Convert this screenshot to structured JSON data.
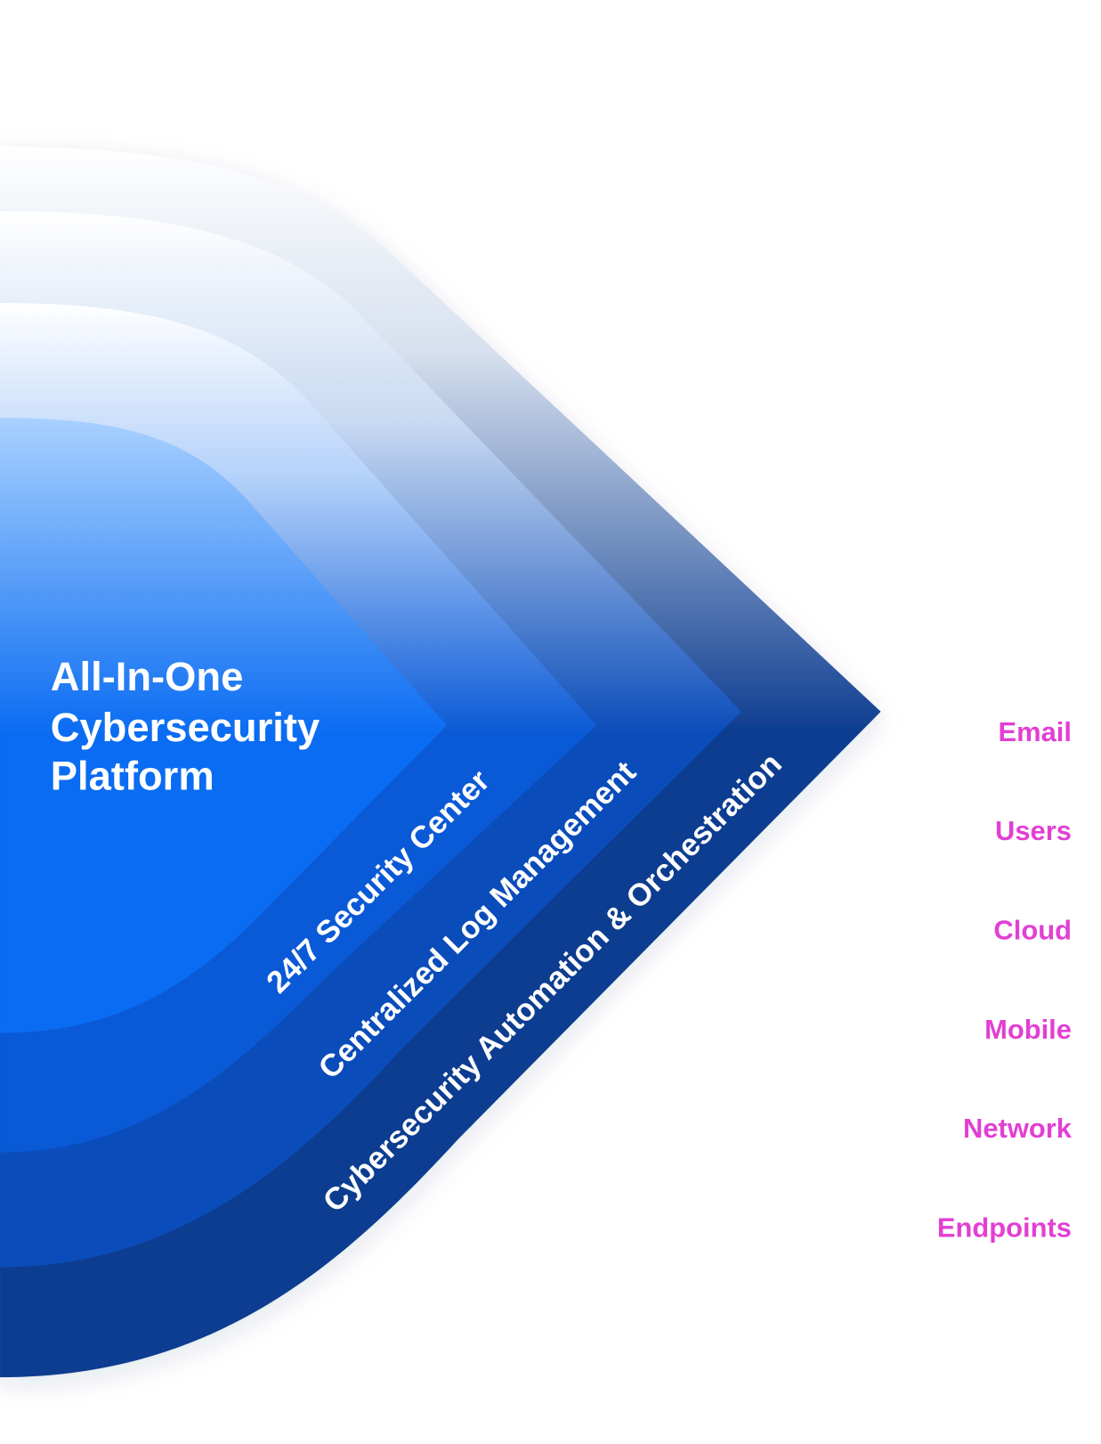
{
  "title": {
    "lines": [
      "All-In-One",
      "Cybersecurity",
      "Platform"
    ]
  },
  "layers": [
    "24/7 Security Center",
    "Centralized Log Management",
    "Cybersecurity Automation & Orchestration"
  ],
  "sources": [
    "Email",
    "Users",
    "Cloud",
    "Mobile",
    "Network",
    "Endpoints"
  ]
}
